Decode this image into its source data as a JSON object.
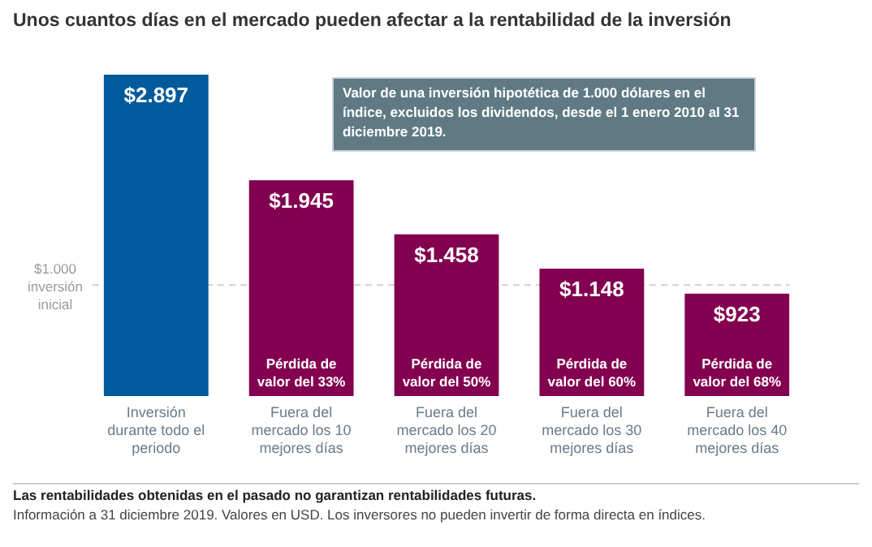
{
  "chart_data": {
    "type": "bar",
    "title": "Unos cuantos días en el mercado pueden afectar a la rentabilidad de la inversión",
    "categories": [
      "Inversión durante todo el periodo",
      "Fuera del mercado los 10 mejores días",
      "Fuera del mercado los 20 mejores días",
      "Fuera del mercado los 30 mejores días",
      "Fuera del mercado los 40 mejores días"
    ],
    "values": [
      2897,
      1945,
      1458,
      1148,
      923
    ],
    "colors": [
      "#005a9c",
      "#82004f",
      "#82004f",
      "#82004f",
      "#82004f"
    ],
    "value_labels": [
      "$2.897",
      "$1.945",
      "$1.458",
      "$1.148",
      "$923"
    ],
    "ref_lines": [
      {
        "axis": "y",
        "value": 1000,
        "label": "$1.000 inversión inicial",
        "color": "#d0d0d0",
        "line_style": "dashed"
      }
    ],
    "annotations": [
      {
        "text": "Pérdida de valor del 33%",
        "x": "Fuera del mercado los 10 mejores días",
        "y": 0
      },
      {
        "text": "Pérdida de valor del 50%",
        "x": "Fuera del mercado los 20 mejores días",
        "y": 0
      },
      {
        "text": "Pérdida de valor del 60%",
        "x": "Fuera del mercado los 30 mejores días",
        "y": 0
      },
      {
        "text": "Pérdida de valor del 68%",
        "x": "Fuera del mercado los 40 mejores días",
        "y": 0
      },
      "Valor de una inversión hipotética de 1.000 dólares en el índice, excluidos los dividendos, desde el 1 enero 2010 al 31 diciembre 2019.",
      "Las rentabilidades obtenidas en el pasado no garantizan rentabilidades futuras.",
      "Información a 31 diciembre 2019. Valores en USD. Los inversores no pueden invertir de forma directa en índices."
    ]
  }
}
